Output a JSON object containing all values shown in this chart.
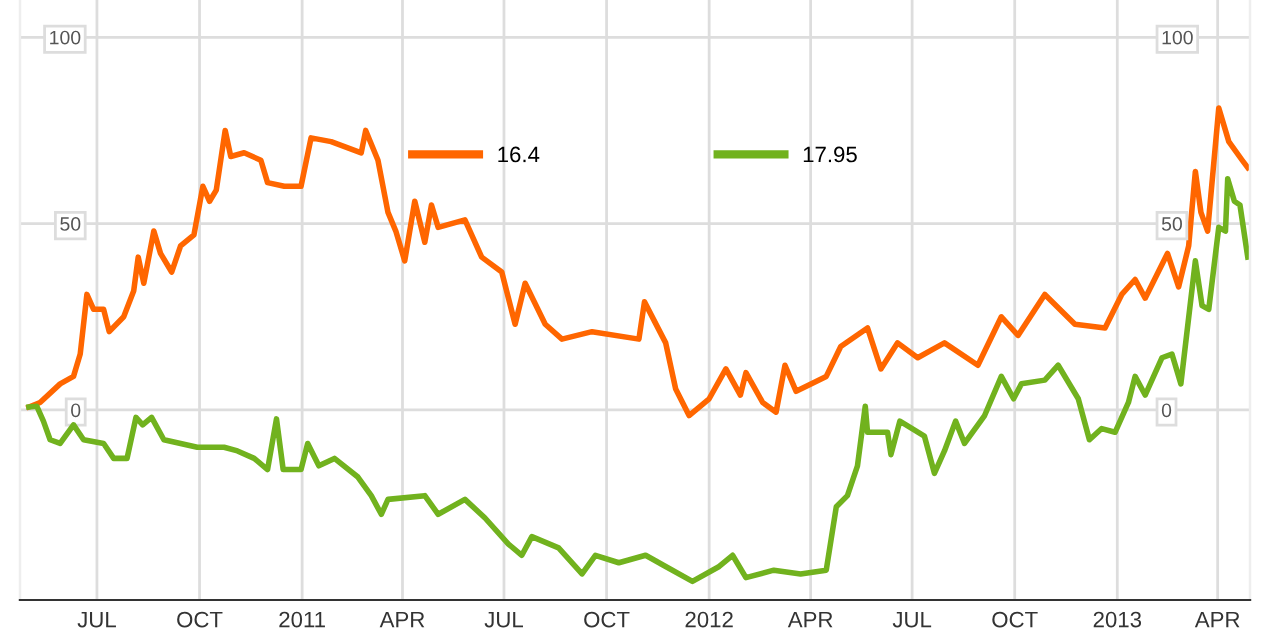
{
  "chart_data": {
    "type": "line",
    "xlim": [
      "2010-04-23",
      "2013-04-30"
    ],
    "xticks": [
      {
        "value": "2010-07-01",
        "label": "JUL"
      },
      {
        "value": "2010-10-01",
        "label": "OCT"
      },
      {
        "value": "2011-01-01",
        "label": "2011"
      },
      {
        "value": "2011-04-01",
        "label": "APR"
      },
      {
        "value": "2011-07-01",
        "label": "JUL"
      },
      {
        "value": "2011-10-01",
        "label": "OCT"
      },
      {
        "value": "2012-01-01",
        "label": "2012"
      },
      {
        "value": "2012-04-01",
        "label": "APR"
      },
      {
        "value": "2012-07-01",
        "label": "JUL"
      },
      {
        "value": "2012-10-01",
        "label": "OCT"
      },
      {
        "value": "2013-01-01",
        "label": "2013"
      },
      {
        "value": "2013-04-01",
        "label": "APR"
      }
    ],
    "ylim": [
      -51,
      110
    ],
    "yticks": [
      0,
      50,
      100
    ],
    "y2lim": [
      -51,
      110
    ],
    "y2ticks": [
      0,
      50,
      100
    ],
    "grid": true,
    "legend": "top",
    "marker": "none",
    "line_style": "solid",
    "series": [
      {
        "name": "16.4",
        "color": "#ff6600",
        "x": [
          "2010-05-01",
          "2010-05-11",
          "2010-05-29",
          "2010-06-10",
          "2010-06-16",
          "2010-06-22",
          "2010-06-28",
          "2010-07-07",
          "2010-07-12",
          "2010-07-25",
          "2010-08-03",
          "2010-08-07",
          "2010-08-12",
          "2010-08-21",
          "2010-08-27",
          "2010-09-06",
          "2010-09-14",
          "2010-09-26",
          "2010-10-04",
          "2010-10-10",
          "2010-10-16",
          "2010-10-24",
          "2010-10-29",
          "2010-11-10",
          "2010-11-25",
          "2010-12-01",
          "2010-12-16",
          "2010-12-31",
          "2011-01-09",
          "2011-01-27",
          "2011-02-23",
          "2011-02-27",
          "2011-03-10",
          "2011-03-19",
          "2011-03-26",
          "2011-04-03",
          "2011-04-12",
          "2011-04-21",
          "2011-04-27",
          "2011-05-03",
          "2011-05-27",
          "2011-06-11",
          "2011-06-29",
          "2011-07-11",
          "2011-07-20",
          "2011-08-07",
          "2011-08-22",
          "2011-09-18",
          "2011-10-30",
          "2011-11-04",
          "2011-11-23",
          "2011-12-02",
          "2011-12-14",
          "2012-01-01",
          "2012-01-16",
          "2012-01-29",
          "2012-02-03",
          "2012-02-18",
          "2012-03-01",
          "2012-03-09",
          "2012-03-19",
          "2012-04-15",
          "2012-04-28",
          "2012-05-22",
          "2012-06-03",
          "2012-06-18",
          "2012-07-06",
          "2012-07-30",
          "2012-08-29",
          "2012-09-19",
          "2012-10-04",
          "2012-10-28",
          "2012-11-24",
          "2012-12-21",
          "2013-01-05",
          "2013-01-17",
          "2013-01-26",
          "2013-02-15",
          "2013-02-25",
          "2013-03-06",
          "2013-03-12",
          "2013-03-17",
          "2013-03-23",
          "2013-04-02",
          "2013-04-11",
          "2013-04-23",
          "2013-04-28"
        ],
        "values": [
          0.8,
          2,
          7,
          9,
          15,
          31,
          27,
          27,
          21,
          25,
          32,
          41,
          34,
          48,
          42,
          37,
          44,
          47,
          60,
          56,
          59,
          75,
          68,
          69,
          67,
          61,
          60,
          60,
          73,
          72,
          69,
          75,
          67,
          53,
          48,
          40,
          56,
          45,
          55,
          49,
          51,
          41,
          37,
          23,
          34,
          23,
          19,
          21,
          19,
          29,
          18,
          5.6,
          -1.5,
          3,
          11,
          4,
          10,
          2,
          -0.6,
          12,
          5,
          9,
          17,
          22,
          11,
          18,
          14,
          18,
          12,
          25,
          20,
          31,
          23,
          22,
          31,
          35,
          30,
          42,
          33,
          44,
          64,
          53,
          48,
          81,
          72,
          67,
          65
        ]
      },
      {
        "name": "17.95",
        "color": "#71b21e",
        "x": [
          "2010-05-01",
          "2010-05-08",
          "2010-05-14",
          "2010-05-20",
          "2010-05-29",
          "2010-06-10",
          "2010-06-19",
          "2010-07-07",
          "2010-07-16",
          "2010-07-28",
          "2010-08-05",
          "2010-08-11",
          "2010-08-19",
          "2010-08-30",
          "2010-09-29",
          "2010-10-23",
          "2010-11-04",
          "2010-11-19",
          "2010-12-01",
          "2010-12-09",
          "2010-12-15",
          "2010-12-31",
          "2011-01-06",
          "2011-01-16",
          "2011-01-30",
          "2011-02-20",
          "2011-03-04",
          "2011-03-13",
          "2011-03-19",
          "2011-04-21",
          "2011-05-03",
          "2011-05-27",
          "2011-06-14",
          "2011-07-05",
          "2011-07-17",
          "2011-07-26",
          "2011-08-19",
          "2011-09-09",
          "2011-09-21",
          "2011-10-12",
          "2011-11-05",
          "2011-11-23",
          "2011-12-17",
          "2012-01-10",
          "2012-01-22",
          "2012-02-03",
          "2012-02-28",
          "2012-03-23",
          "2012-04-15",
          "2012-04-24",
          "2012-05-04",
          "2012-05-13",
          "2012-05-20",
          "2012-05-22",
          "2012-06-09",
          "2012-06-12",
          "2012-06-20",
          "2012-07-12",
          "2012-07-21",
          "2012-07-30",
          "2012-08-09",
          "2012-08-17",
          "2012-09-04",
          "2012-09-19",
          "2012-09-30",
          "2012-10-07",
          "2012-10-28",
          "2012-11-09",
          "2012-11-27",
          "2012-12-07",
          "2012-12-18",
          "2012-12-30",
          "2013-01-11",
          "2013-01-17",
          "2013-01-26",
          "2013-02-10",
          "2013-02-19",
          "2013-02-27",
          "2013-03-12",
          "2013-03-18",
          "2013-03-24",
          "2013-04-02",
          "2013-04-08",
          "2013-04-10",
          "2013-04-16",
          "2013-04-21",
          "2013-04-28"
        ],
        "values": [
          0.8,
          1,
          -3,
          -8,
          -9,
          -4,
          -8,
          -9,
          -13,
          -13,
          -2,
          -4,
          -2,
          -8,
          -10,
          -10,
          -11,
          -13,
          -16,
          -2.4,
          -16,
          -16,
          -9,
          -15,
          -13,
          -18,
          -23,
          -28,
          -24,
          -23,
          -28,
          -24,
          -29,
          -36,
          -39,
          -34,
          -37,
          -44,
          -39,
          -41,
          -39,
          -42,
          -46,
          -42,
          -39,
          -45,
          -43,
          -44,
          -43,
          -26,
          -23,
          -15,
          1,
          -6,
          -6,
          -12,
          -3,
          -7,
          -17,
          -11,
          -3,
          -9,
          -1.5,
          9,
          3,
          7,
          8,
          12,
          3,
          -8,
          -5,
          -6,
          2,
          9,
          4,
          14,
          15,
          7,
          40,
          28,
          27,
          49,
          48,
          62,
          56,
          55,
          41
        ]
      }
    ]
  }
}
